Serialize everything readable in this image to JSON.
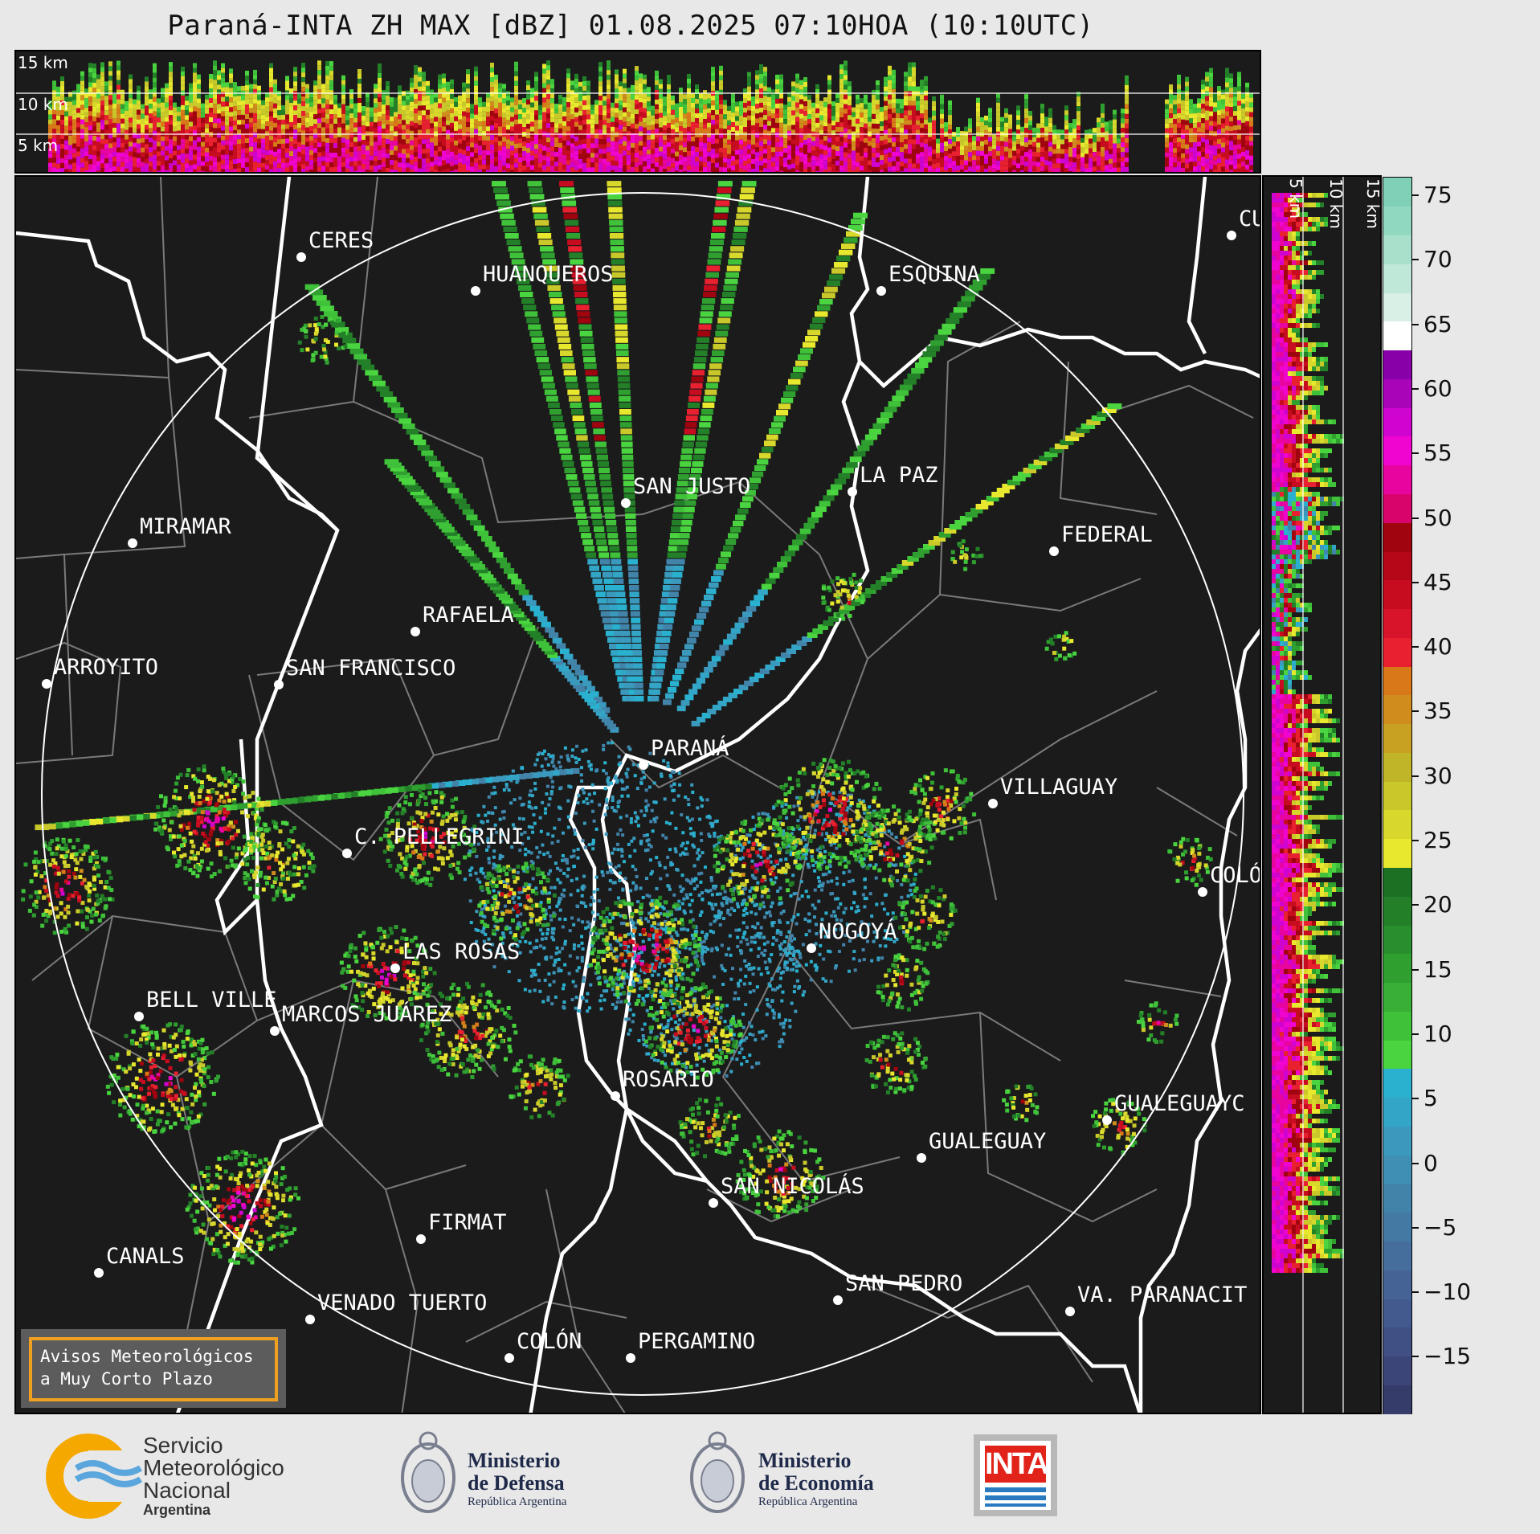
{
  "title": "Paraná-INTA ZH MAX [dBZ] 01.08.2025 07:10HOA (10:10UTC)",
  "top_panel": {
    "heights": [
      "15 km",
      "10 km",
      "5 km"
    ]
  },
  "side_panel": {
    "heights": [
      "5 km",
      "10 km",
      "15 km"
    ]
  },
  "map": {
    "radar_site": "PARANÁ",
    "cities": [
      "CERES",
      "HUANQUEROS",
      "ESQUINA",
      "CU",
      "SAN JUSTO",
      "LA PAZ",
      "MIRAMAR",
      "FEDERAL",
      "RAFAELA",
      "ARROYITO",
      "SAN FRANCISCO",
      "PARANÁ",
      "VILLAGUAY",
      "C. PELLEGRINI",
      "COLÓ",
      "NOGOYÁ",
      "LAS ROSAS",
      "BELL VILLE",
      "MARCOS JUÁREZ",
      "ROSARIO",
      "GUALEGUAYC",
      "GUALEGUAY",
      "SAN NICOLÁS",
      "FIRMAT",
      "CANALS",
      "SAN PEDRO",
      "VENADO TUERTO",
      "VA. PARANACIT",
      "COLÓN",
      "PERGAMINO"
    ],
    "notice_line1": "Avisos Meteorológicos",
    "notice_line2": "a Muy Corto Plazo"
  },
  "colorbar": {
    "ticks": [
      "75",
      "70",
      "65",
      "60",
      "55",
      "50",
      "45",
      "40",
      "35",
      "30",
      "25",
      "20",
      "15",
      "10",
      "5",
      "0",
      "−5",
      "−10",
      "−15"
    ],
    "colors": [
      "#363c6a",
      "#3b4577",
      "#404f84",
      "#435a8e",
      "#456495",
      "#456e9c",
      "#4479a3",
      "#4283aa",
      "#3f8eb3",
      "#3a99bc",
      "#33a5c6",
      "#29b1cf",
      "#4ad43f",
      "#3fc13a",
      "#37b035",
      "#2f9f30",
      "#288f2c",
      "#238028",
      "#1c7024",
      "#e8e82e",
      "#d8d82c",
      "#c8c82a",
      "#c0b428",
      "#c8a022",
      "#d08c1c",
      "#d87818",
      "#e82030",
      "#d8142a",
      "#c80c20",
      "#b40818",
      "#a0040f",
      "#d8046c",
      "#e8049e",
      "#f004d0",
      "#d004d0",
      "#a804b8",
      "#8800a8",
      "#ffffff",
      "#d8f0e6",
      "#c0e8d8",
      "#a8e0cc",
      "#90d8bf",
      "#80d0b8"
    ]
  },
  "logos": {
    "smn_line1": "Servicio",
    "smn_line2": "Meteorológico",
    "smn_line3": "Nacional",
    "smn_line4": "Argentina",
    "defensa_line1": "Ministerio",
    "defensa_line2": "de Defensa",
    "defensa_line3": "República Argentina",
    "economia_line1": "Ministerio",
    "economia_line2": "de Economía",
    "economia_line3": "República Argentina",
    "inta": "INTA"
  }
}
